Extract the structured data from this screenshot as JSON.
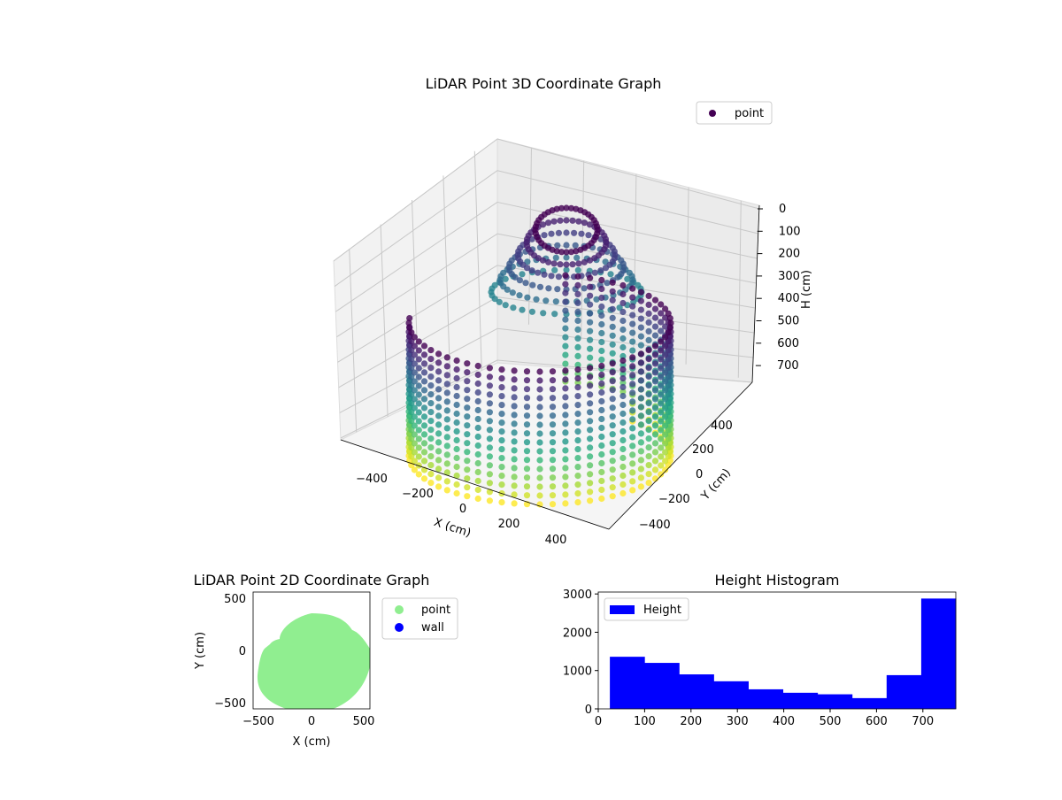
{
  "chart_data": [
    {
      "type": "scatter3d",
      "title": "LiDAR Point 3D Coordinate Graph",
      "xlabel": "X (cm)",
      "ylabel": "Y (cm)",
      "zlabel": "H (cm)",
      "xticks": [
        "−400",
        "−200",
        "0",
        "200",
        "400"
      ],
      "yticks": [
        "−400",
        "−200",
        "0",
        "200",
        "400"
      ],
      "zticks": [
        "0",
        "100",
        "200",
        "300",
        "400",
        "500",
        "600",
        "700"
      ],
      "zlim": [
        750,
        0
      ],
      "legend": [
        {
          "label": "point",
          "color": "#440154"
        }
      ],
      "legend_position": "top-right",
      "colormap": "viridis"
    },
    {
      "type": "scatter",
      "title": "LiDAR Point 2D Coordinate Graph",
      "xlabel": "X (cm)",
      "ylabel": "Y (cm)",
      "xticks": [
        "−500",
        "0",
        "500"
      ],
      "yticks": [
        "500",
        "0",
        "−500"
      ],
      "xlim": [
        -550,
        550
      ],
      "ylim": [
        -550,
        550
      ],
      "legend": [
        {
          "label": "point",
          "color": "#90ee90"
        },
        {
          "label": "wall",
          "color": "#0000ff"
        }
      ],
      "legend_position": "outside-right"
    },
    {
      "type": "bar",
      "title": "Height Histogram",
      "bin_edges": [
        25,
        99.6,
        174.2,
        248.8,
        323.4,
        398,
        472.6,
        547.2,
        621.8,
        696.4,
        771
      ],
      "values": [
        1360,
        1200,
        900,
        720,
        510,
        420,
        380,
        280,
        880,
        2880
      ],
      "xlim": [
        0,
        771
      ],
      "ylim": [
        0,
        3050
      ],
      "xticks": [
        "0",
        "100",
        "200",
        "300",
        "400",
        "500",
        "600",
        "700"
      ],
      "yticks": [
        "0",
        "1000",
        "2000",
        "3000"
      ],
      "legend": [
        {
          "label": "Height",
          "color": "#0000ff"
        }
      ],
      "legend_position": "top-left"
    }
  ]
}
